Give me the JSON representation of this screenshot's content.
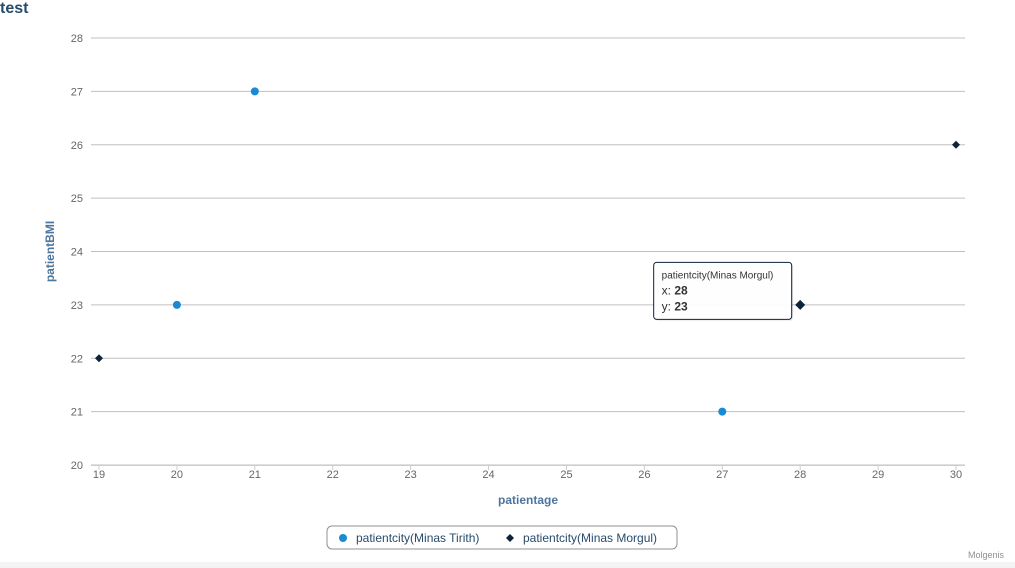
{
  "chart_data": {
    "type": "scatter",
    "title": "test",
    "xlabel": "patientage",
    "ylabel": "patientBMI",
    "xlim": [
      19,
      30
    ],
    "ylim": [
      20,
      28
    ],
    "x_ticks": [
      19,
      20,
      21,
      22,
      23,
      24,
      25,
      26,
      27,
      28,
      29,
      30
    ],
    "y_ticks": [
      20,
      21,
      22,
      23,
      24,
      25,
      26,
      27,
      28
    ],
    "grid": "horizontal",
    "legend_position": "bottom-center",
    "series": [
      {
        "name": "patientcity(Minas Tirith)",
        "marker": "circle",
        "color": "#1a8ad4",
        "points": [
          {
            "x": 20,
            "y": 23
          },
          {
            "x": 21,
            "y": 27
          },
          {
            "x": 27,
            "y": 21
          }
        ]
      },
      {
        "name": "patientcity(Minas Morgul)",
        "marker": "diamond",
        "color": "#0d233a",
        "points": [
          {
            "x": 19,
            "y": 22
          },
          {
            "x": 28,
            "y": 23
          },
          {
            "x": 30,
            "y": 26
          }
        ]
      }
    ],
    "tooltip": {
      "series": "patientcity(Minas Morgul)",
      "x_prefix": "x: ",
      "x_value": "28",
      "y_prefix": "y: ",
      "y_value": "23"
    },
    "credits": "Molgenis"
  }
}
